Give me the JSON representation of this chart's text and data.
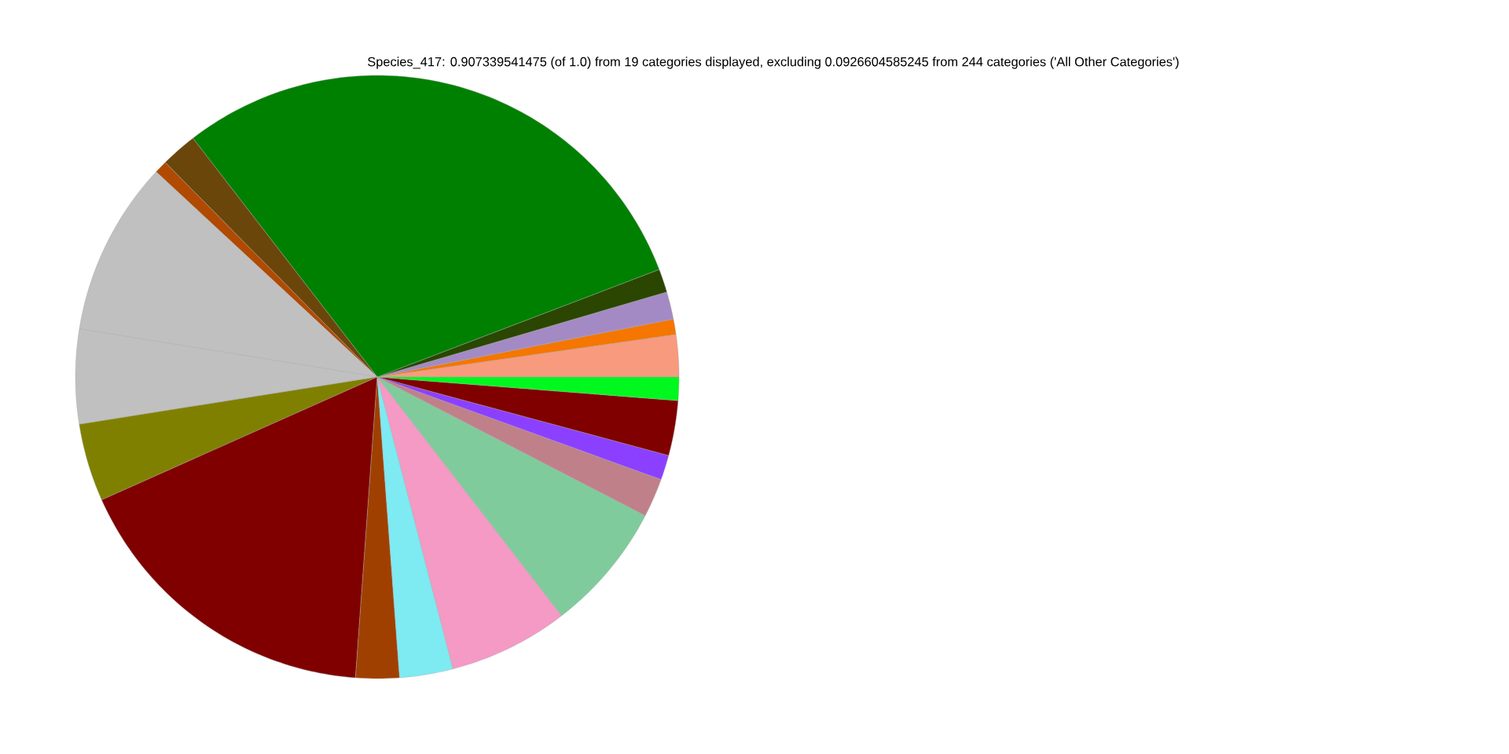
{
  "chart_data": {
    "type": "pie",
    "title": "Species_417: 0.907339541475 (of 1.0) from 19 categories displayed, excluding 0.0926604585245 from 244 categories ('All Other Categories')",
    "categories": [
      null,
      null,
      null,
      null,
      null,
      null,
      null,
      null,
      null,
      null,
      null,
      null,
      null,
      null,
      null,
      null,
      null,
      null,
      null
    ],
    "values": [
      2.25,
      0.83,
      1.47,
      1.25,
      29.66,
      1.94,
      0.69,
      9.36,
      5.06,
      4.17,
      17.17,
      2.33,
      2.86,
      6.42,
      6.94,
      2.08,
      1.33,
      2.94,
      1.25
    ],
    "colors": [
      "#f89a7e",
      "#f57600",
      "#a48ac4",
      "#2a4600",
      "#008000",
      "#6b460b",
      "#b04a00",
      "#c0c0c0",
      "#c0c0c0",
      "#808000",
      "#800000",
      "#a04000",
      "#7eeaf2",
      "#f49ac4",
      "#80cb9c",
      "#c0808a",
      "#8c40ff",
      "#800000",
      "#00f81e"
    ]
  }
}
